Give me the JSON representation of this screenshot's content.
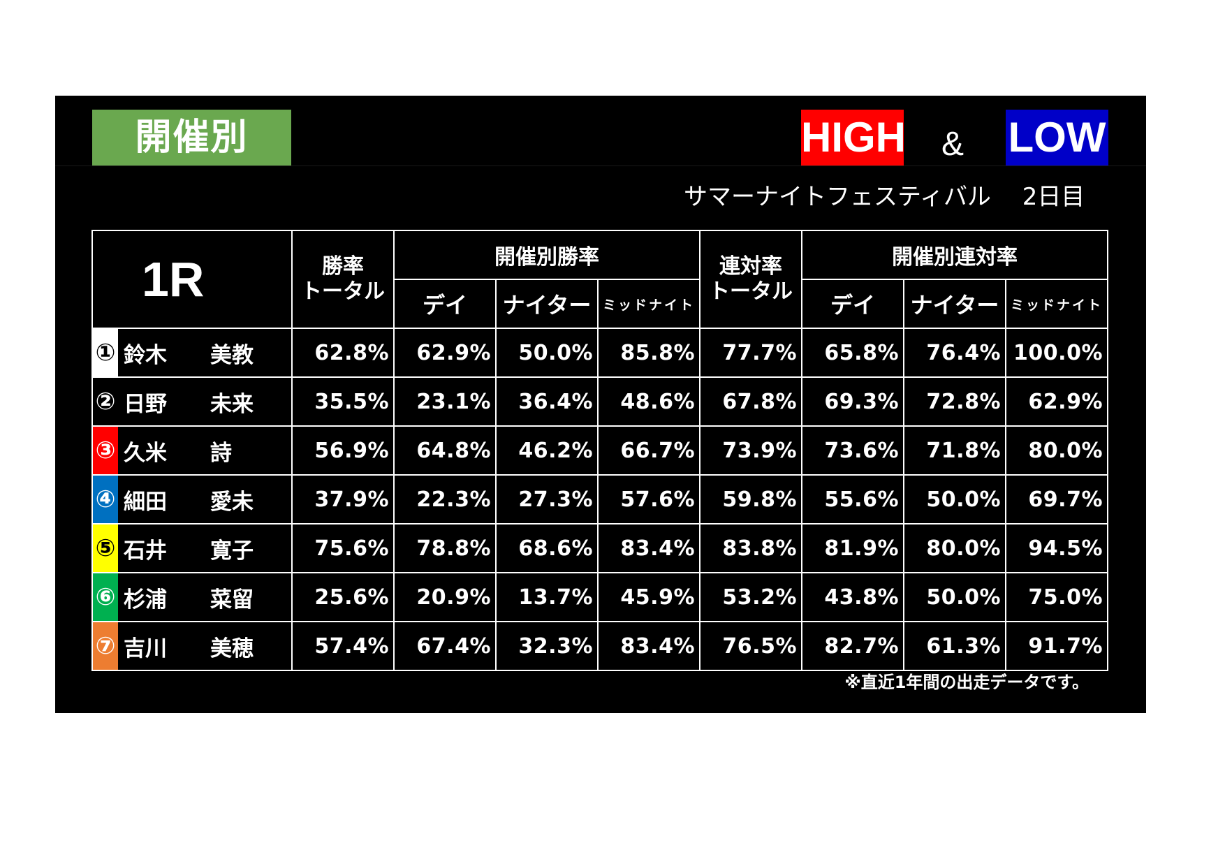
{
  "header": {
    "title": "開催別",
    "high_label": "HIGH",
    "amp": "&",
    "low_label": "LOW",
    "event": "サマーナイトフェスティバル　 2日目",
    "colors": {
      "title_bg": "#6aa84f",
      "high_bg": "#ff0000",
      "low_bg": "#0000c8",
      "high_text": "#ff1a1a",
      "low_text": "#1a1aa0"
    }
  },
  "table": {
    "race": "1R",
    "col_win_total_line1": "勝率",
    "col_win_total_line2": "トータル",
    "group_win": "開催別勝率",
    "col_place_total_line1": "連対率",
    "col_place_total_line2": "トータル",
    "group_place": "開催別連対率",
    "sub_day": "デイ",
    "sub_night": "ナイター",
    "sub_midnight": "ミッドナイト",
    "rows": [
      {
        "num": "①",
        "badge_bg": "#ffffff",
        "badge_fg": "#000000",
        "sei": "鈴木",
        "mei": "美教",
        "v": [
          [
            "62.8%",
            "w"
          ],
          [
            "62.9%",
            "hi"
          ],
          [
            "50.0%",
            "lo"
          ],
          [
            "85.8%",
            "hi"
          ],
          [
            "77.7%",
            "w"
          ],
          [
            "65.8%",
            "lo"
          ],
          [
            "76.4%",
            "lo"
          ],
          [
            "100.0%",
            "hi"
          ]
        ]
      },
      {
        "num": "②",
        "badge_bg": "#000000",
        "badge_fg": "#ffffff",
        "sei": "日野",
        "mei": "未来",
        "v": [
          [
            "35.5%",
            "w"
          ],
          [
            "23.1%",
            "lo"
          ],
          [
            "36.4%",
            "hi"
          ],
          [
            "48.6%",
            "hi"
          ],
          [
            "67.8%",
            "w"
          ],
          [
            "69.3%",
            "hi"
          ],
          [
            "72.8%",
            "hi"
          ],
          [
            "62.9%",
            "lo"
          ]
        ]
      },
      {
        "num": "③",
        "badge_bg": "#ff0000",
        "badge_fg": "#ffffff",
        "sei": "久米",
        "mei": "詩",
        "v": [
          [
            "56.9%",
            "w"
          ],
          [
            "64.8%",
            "hi"
          ],
          [
            "46.2%",
            "lo"
          ],
          [
            "66.7%",
            "hi"
          ],
          [
            "73.9%",
            "w"
          ],
          [
            "73.6%",
            "lo"
          ],
          [
            "71.8%",
            "lo"
          ],
          [
            "80.0%",
            "hi"
          ]
        ]
      },
      {
        "num": "④",
        "badge_bg": "#0070c0",
        "badge_fg": "#ffffff",
        "sei": "細田",
        "mei": "愛未",
        "v": [
          [
            "37.9%",
            "w"
          ],
          [
            "22.3%",
            "lo"
          ],
          [
            "27.3%",
            "lo"
          ],
          [
            "57.6%",
            "hi"
          ],
          [
            "59.8%",
            "w"
          ],
          [
            "55.6%",
            "lo"
          ],
          [
            "50.0%",
            "lo"
          ],
          [
            "69.7%",
            "hi"
          ]
        ]
      },
      {
        "num": "⑤",
        "badge_bg": "#ffff00",
        "badge_fg": "#000000",
        "sei": "石井",
        "mei": "寛子",
        "v": [
          [
            "75.6%",
            "w"
          ],
          [
            "78.8%",
            "hi"
          ],
          [
            "68.6%",
            "lo"
          ],
          [
            "83.4%",
            "hi"
          ],
          [
            "83.8%",
            "w"
          ],
          [
            "81.9%",
            "lo"
          ],
          [
            "80.0%",
            "lo"
          ],
          [
            "94.5%",
            "hi"
          ]
        ]
      },
      {
        "num": "⑥",
        "badge_bg": "#00b050",
        "badge_fg": "#ffffff",
        "sei": "杉浦",
        "mei": "菜留",
        "v": [
          [
            "25.6%",
            "w"
          ],
          [
            "20.9%",
            "lo"
          ],
          [
            "13.7%",
            "lo"
          ],
          [
            "45.9%",
            "hi"
          ],
          [
            "53.2%",
            "w"
          ],
          [
            "43.8%",
            "lo"
          ],
          [
            "50.0%",
            "lo"
          ],
          [
            "75.0%",
            "hi"
          ]
        ]
      },
      {
        "num": "⑦",
        "badge_bg": "#ed7d31",
        "badge_fg": "#ffffff",
        "sei": "吉川",
        "mei": "美穂",
        "v": [
          [
            "57.4%",
            "w"
          ],
          [
            "67.4%",
            "hi"
          ],
          [
            "32.3%",
            "lo"
          ],
          [
            "83.4%",
            "hi"
          ],
          [
            "76.5%",
            "w"
          ],
          [
            "82.7%",
            "hi"
          ],
          [
            "61.3%",
            "lo"
          ],
          [
            "91.7%",
            "hi"
          ]
        ]
      }
    ]
  },
  "footnote": "※直近1年間の出走データです。"
}
